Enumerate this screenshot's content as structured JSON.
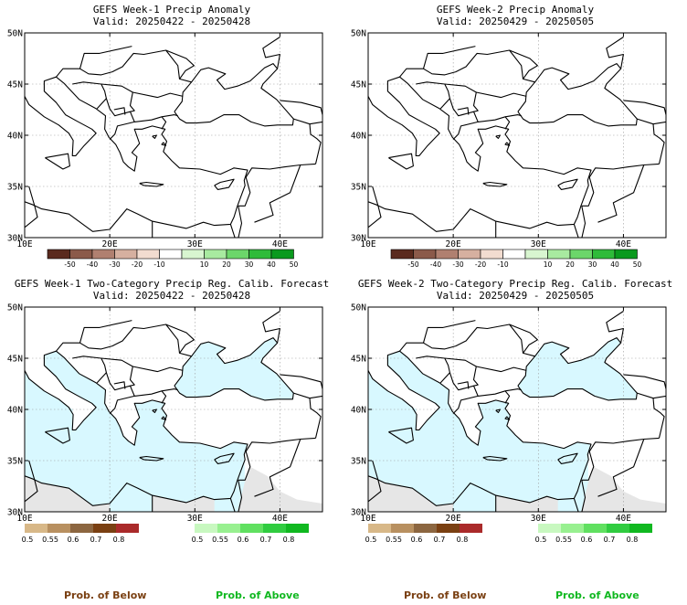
{
  "panels": [
    {
      "id": "tl",
      "title": "GEFS Week-1 Precip Anomaly",
      "subtitle": "Valid: 20250422 - 20250428",
      "kind": "anomaly",
      "lat_labels": [
        "50N",
        "45N",
        "40N",
        "35N",
        "30N"
      ],
      "lon_labels": [
        "10E",
        "20E",
        "30E",
        "40E"
      ],
      "colorbar_labels": [
        "-50",
        "-40",
        "-30",
        "-20",
        "-10",
        "10",
        "20",
        "30",
        "40",
        "50"
      ]
    },
    {
      "id": "tr",
      "title": "GEFS Week-2 Precip Anomaly",
      "subtitle": "Valid: 20250429 - 20250505",
      "kind": "anomaly",
      "lat_labels": [
        "50N",
        "45N",
        "40N",
        "35N",
        "30N"
      ],
      "lon_labels": [
        "10E",
        "20E",
        "30E",
        "40E"
      ],
      "colorbar_labels": [
        "-50",
        "-40",
        "-30",
        "-20",
        "-10",
        "10",
        "20",
        "30",
        "40",
        "50"
      ]
    },
    {
      "id": "bl",
      "title": "GEFS Week-1 Two-Category Precip Reg. Calib. Forecast",
      "subtitle": "Valid: 20250422 - 20250428",
      "kind": "prob",
      "lat_labels": [
        "50N",
        "45N",
        "40N",
        "35N",
        "30N"
      ],
      "lon_labels": [
        "10E",
        "20E",
        "30E",
        "40E"
      ],
      "below_labels": [
        "0.5",
        "0.55",
        "0.6",
        "0.7",
        "0.8"
      ],
      "above_labels": [
        "0.5",
        "0.55",
        "0.6",
        "0.7",
        "0.8"
      ]
    },
    {
      "id": "br",
      "title": "GEFS Week-2 Two-Category Precip Reg. Calib. Forecast",
      "subtitle": "Valid: 20250429 - 20250505",
      "kind": "prob",
      "lat_labels": [
        "50N",
        "45N",
        "40N",
        "35N",
        "30N"
      ],
      "lon_labels": [
        "10E",
        "20E",
        "30E",
        "40E"
      ],
      "below_labels": [
        "0.5",
        "0.55",
        "0.6",
        "0.7",
        "0.8"
      ],
      "above_labels": [
        "0.5",
        "0.55",
        "0.6",
        "0.7",
        "0.8"
      ]
    }
  ],
  "legend_text": {
    "prob_below": "Prob. of Below",
    "prob_above": "Prob. of Above"
  },
  "colors": {
    "anomaly_dry": [
      "#5a2a1e",
      "#8b5a4a",
      "#b08070",
      "#d6b0a0",
      "#f2dcd0"
    ],
    "anomaly_wet": [
      "#d8f5d0",
      "#a8eaa0",
      "#6cd66a",
      "#2fbb3a",
      "#0a9a1e"
    ],
    "prob_below": [
      "#d8b888",
      "#b89060",
      "#8c6640",
      "#7a4012",
      "#aa2a2a"
    ],
    "prob_above": [
      "#c8f8c0",
      "#98f090",
      "#60e060",
      "#30cc40",
      "#10b820"
    ],
    "ocean": "#d8f8ff",
    "land_outside": "#e6e6e6",
    "prob_below_text": "#7a4012",
    "prob_above_text": "#10b820"
  }
}
